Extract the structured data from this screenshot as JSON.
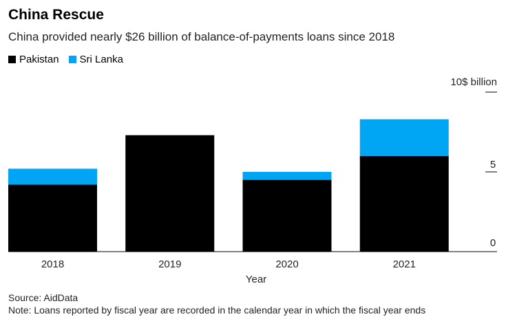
{
  "header": {
    "title": "China Rescue",
    "subtitle": "China provided nearly $26 billion of balance-of-payments loans since 2018"
  },
  "colors": {
    "pakistan": "#000000",
    "sri_lanka": "#00a6f4",
    "axis": "#000000"
  },
  "footer": {
    "source": "Source: AidData",
    "note": "Note: Loans reported by fiscal year are recorded in the calendar year in which the fiscal year ends"
  },
  "chart_data": {
    "type": "bar",
    "stacked": true,
    "title": "China Rescue",
    "subtitle": "China provided nearly $26 billion of balance-of-payments loans since 2018",
    "xlabel": "Year",
    "ylabel": "10$ billion",
    "categories": [
      "2018",
      "2019",
      "2020",
      "2021"
    ],
    "series": [
      {
        "name": "Pakistan",
        "color": "#000000",
        "values": [
          4.2,
          7.3,
          4.5,
          6.0
        ]
      },
      {
        "name": "Sri Lanka",
        "color": "#00a6f4",
        "values": [
          1.0,
          0.0,
          0.5,
          2.3
        ]
      }
    ],
    "ylim": [
      0,
      10
    ],
    "yticks": [
      "0",
      "5",
      "10"
    ],
    "legend_position": "top-left",
    "grid": false
  }
}
